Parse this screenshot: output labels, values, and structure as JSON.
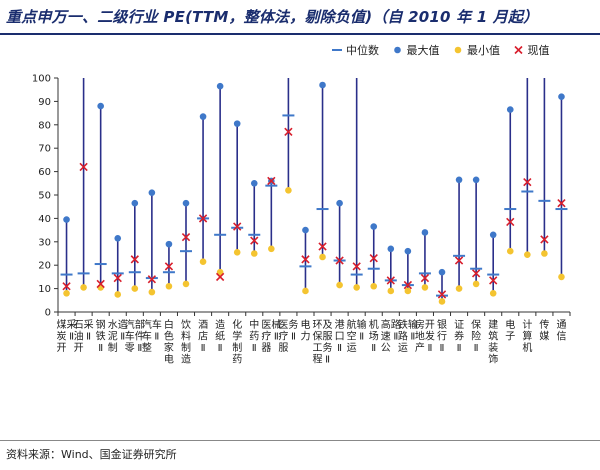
{
  "title": "重点申万一、二级行业 PE(TTM，整体法，剔除负值)（自 2010 年 1 月起）",
  "source": "资料来源：Wind、国金证券研究所",
  "colors": {
    "line": "#2a2f8a",
    "max": "#3f78c9",
    "min": "#f4c430",
    "current": "#d81e2c",
    "median": "#3f78c9"
  },
  "chart_data": {
    "type": "scatter",
    "ylim": [
      0,
      100
    ],
    "yticks": [
      0,
      10,
      20,
      30,
      40,
      50,
      60,
      70,
      80,
      90,
      100
    ],
    "legend": {
      "placement": "top-right",
      "entries": [
        "中位数",
        "最大值",
        "最小值",
        "现值"
      ]
    },
    "categories": [
      "煤炭开采Ⅱ",
      "石油开采Ⅱ",
      "钢铁Ⅱ",
      "水泥制造Ⅱ",
      "汽车零部件Ⅱ",
      "汽车整车Ⅱ",
      "白色家电",
      "饮料制造",
      "酒店Ⅱ",
      "造纸Ⅱ",
      "化学制药",
      "中药Ⅱ",
      "医疗器械Ⅱ",
      "医疗服务Ⅱ",
      "电力",
      "环保工程及服务Ⅱ",
      "港口Ⅱ",
      "航空运输Ⅱ",
      "机场Ⅱ",
      "高速公路Ⅱ",
      "铁路运输Ⅱ",
      "房地产开发Ⅱ",
      "银行Ⅱ",
      "证券Ⅱ",
      "保险Ⅱ",
      "建筑装饰",
      "电子",
      "计算机",
      "传媒",
      "通信"
    ],
    "series": [
      {
        "name": "中位数",
        "values": [
          16,
          16.5,
          20.5,
          16.5,
          17,
          14.5,
          17,
          26,
          40,
          33,
          36,
          33,
          54,
          84,
          19.5,
          44,
          22,
          16,
          18.5,
          13.5,
          11.5,
          16.5,
          7,
          24,
          18.5,
          16,
          44,
          51.5,
          47.5,
          44
        ]
      },
      {
        "name": "最大值",
        "values": [
          39.5,
          100,
          88,
          31.5,
          46.5,
          51,
          29,
          46.5,
          83.5,
          96.5,
          80.5,
          55,
          56,
          100,
          35,
          97,
          46.5,
          100,
          36.5,
          27,
          26,
          34,
          17,
          56.5,
          56.5,
          33,
          86.5,
          100,
          100,
          92
        ]
      },
      {
        "name": "最小值",
        "values": [
          8,
          10.5,
          10.5,
          7.5,
          10,
          8.5,
          11,
          12,
          21.5,
          17,
          25.5,
          25,
          27,
          52,
          9,
          23.5,
          11.5,
          10.5,
          11,
          9,
          9,
          10.5,
          4.5,
          10,
          12,
          8,
          26,
          24.5,
          25,
          15
        ]
      },
      {
        "name": "现值",
        "values": [
          11,
          62,
          12,
          14.5,
          22.5,
          14,
          19.5,
          32,
          40,
          15,
          36.5,
          30.5,
          56,
          77,
          22.5,
          28,
          22,
          19.5,
          23,
          13.5,
          11.5,
          14.5,
          7.5,
          22,
          16.5,
          13.5,
          38.5,
          55.5,
          31,
          46.5
        ]
      }
    ]
  }
}
